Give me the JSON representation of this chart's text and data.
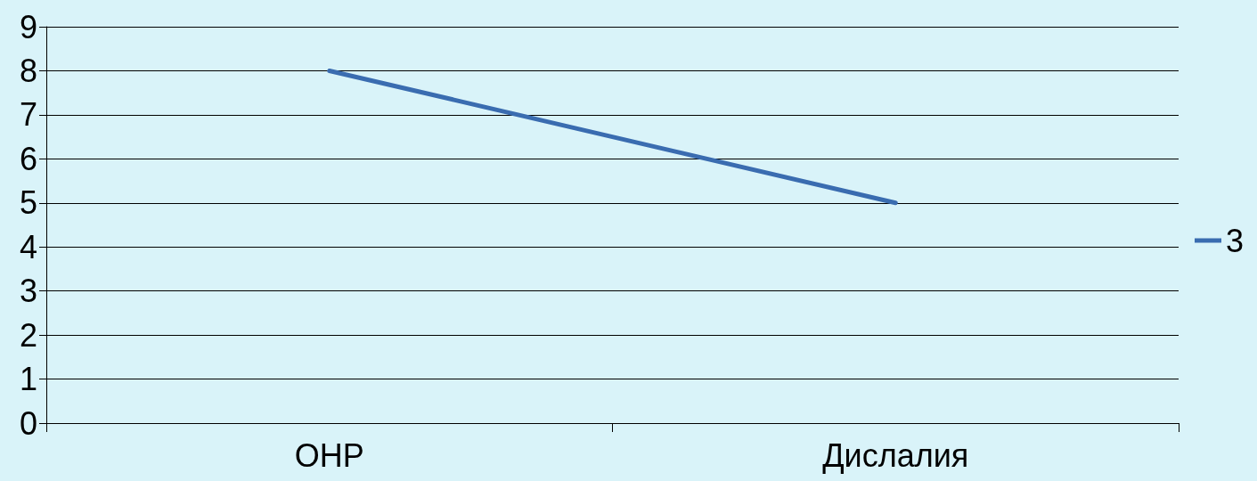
{
  "chart_data": {
    "type": "line",
    "categories": [
      "ОНР",
      "Дислалия"
    ],
    "series": [
      {
        "name": "3",
        "color": "#3a6cb0",
        "values": [
          8,
          5
        ]
      }
    ],
    "ylim": [
      0,
      9
    ],
    "yticks": [
      0,
      1,
      2,
      3,
      4,
      5,
      6,
      7,
      8,
      9
    ],
    "grid": "y",
    "legend": "right",
    "marker": "none"
  }
}
